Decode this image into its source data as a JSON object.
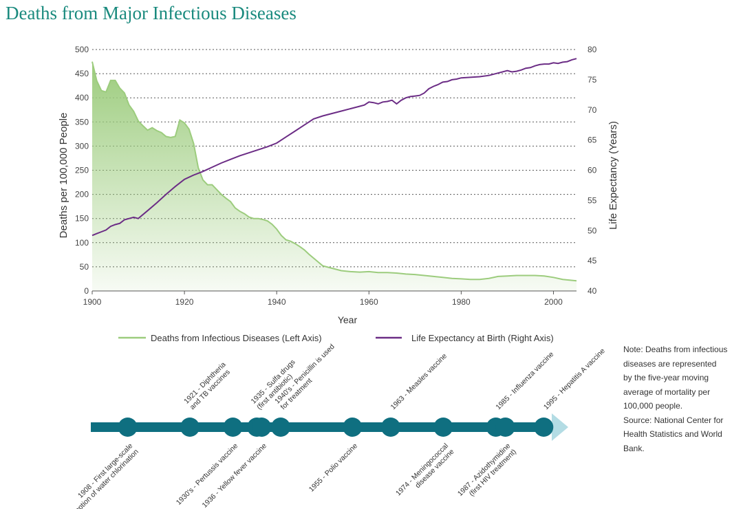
{
  "title": "Deaths from Major Infectious Diseases",
  "colors": {
    "title": "#1a8a7e",
    "deaths_line": "#9ccc7d",
    "deaths_fill": "#a8d08d",
    "life_line": "#6b2c85",
    "timeline": "#0f6f80",
    "timeline_arrow": "#b3dce4"
  },
  "chart_data": {
    "type": "area",
    "xlabel": "Year",
    "ylabel": "Deaths per 100,000 People",
    "y2label": "Life Expectancy (Years)",
    "xlim": [
      1900,
      2005
    ],
    "ylim": [
      0,
      500
    ],
    "y2lim": [
      40,
      80
    ],
    "x_ticks": [
      "1900",
      "1920",
      "1940",
      "1960",
      "1980",
      "2000"
    ],
    "y_ticks": [
      "0",
      "50",
      "100",
      "150",
      "200",
      "250",
      "300",
      "350",
      "400",
      "450",
      "500"
    ],
    "y2_ticks": [
      "40",
      "45",
      "50",
      "55",
      "60",
      "65",
      "70",
      "75",
      "80"
    ],
    "grid": true,
    "legend_position": "bottom",
    "series": [
      {
        "name": "Deaths from Infectious Diseases (Left Axis)",
        "axis": "left",
        "type": "area",
        "x": [
          1900,
          1901,
          1902,
          1903,
          1904,
          1905,
          1906,
          1907,
          1908,
          1909,
          1910,
          1911,
          1912,
          1913,
          1914,
          1915,
          1916,
          1917,
          1918,
          1919,
          1920,
          1921,
          1922,
          1923,
          1924,
          1925,
          1926,
          1927,
          1928,
          1929,
          1930,
          1931,
          1932,
          1933,
          1934,
          1935,
          1936,
          1937,
          1938,
          1939,
          1940,
          1941,
          1942,
          1943,
          1944,
          1945,
          1946,
          1947,
          1948,
          1949,
          1950,
          1952,
          1954,
          1956,
          1958,
          1960,
          1962,
          1964,
          1966,
          1968,
          1970,
          1972,
          1974,
          1976,
          1978,
          1980,
          1982,
          1984,
          1986,
          1988,
          1990,
          1992,
          1994,
          1996,
          1998,
          2000,
          2002,
          2005
        ],
        "values": [
          475,
          435,
          415,
          412,
          436,
          436,
          420,
          410,
          385,
          372,
          352,
          342,
          333,
          338,
          332,
          328,
          320,
          318,
          320,
          354,
          348,
          335,
          305,
          255,
          230,
          220,
          220,
          210,
          200,
          192,
          185,
          172,
          165,
          160,
          153,
          150,
          150,
          148,
          145,
          138,
          128,
          115,
          106,
          103,
          98,
          92,
          85,
          76,
          68,
          60,
          52,
          47,
          42,
          40,
          39,
          40,
          38,
          38,
          37,
          35,
          34,
          32,
          30,
          28,
          26,
          25,
          24,
          24,
          26,
          30,
          31,
          32,
          32,
          32,
          31,
          28,
          24,
          21
        ],
        "color": "#9ccc7d"
      },
      {
        "name": "Life Expectancy at Birth (Right Axis)",
        "axis": "right",
        "type": "line",
        "x": [
          1900,
          1901,
          1902,
          1903,
          1904,
          1905,
          1906,
          1907,
          1908,
          1909,
          1910,
          1912,
          1914,
          1916,
          1918,
          1920,
          1922,
          1924,
          1926,
          1928,
          1930,
          1932,
          1934,
          1936,
          1938,
          1940,
          1942,
          1944,
          1946,
          1948,
          1950,
          1952,
          1954,
          1956,
          1958,
          1959,
          1960,
          1961,
          1962,
          1963,
          1964,
          1965,
          1966,
          1967,
          1968,
          1969,
          1970,
          1971,
          1972,
          1973,
          1974,
          1975,
          1976,
          1977,
          1978,
          1979,
          1980,
          1982,
          1984,
          1986,
          1988,
          1990,
          1991,
          1992,
          1993,
          1994,
          1995,
          1996,
          1997,
          1998,
          1999,
          2000,
          2001,
          2002,
          2003,
          2004,
          2005
        ],
        "values": [
          49.2,
          49.5,
          49.8,
          50.1,
          50.7,
          51.0,
          51.2,
          51.8,
          52.0,
          52.2,
          52.0,
          53.3,
          54.6,
          56.0,
          57.3,
          58.5,
          59.2,
          59.8,
          60.5,
          61.2,
          61.8,
          62.4,
          62.9,
          63.4,
          63.9,
          64.5,
          65.5,
          66.5,
          67.5,
          68.5,
          69.0,
          69.4,
          69.8,
          70.2,
          70.6,
          70.8,
          71.3,
          71.2,
          71.0,
          71.3,
          71.4,
          71.6,
          71.0,
          71.6,
          72.0,
          72.2,
          72.3,
          72.4,
          72.8,
          73.5,
          73.9,
          74.2,
          74.6,
          74.7,
          75.0,
          75.1,
          75.3,
          75.4,
          75.5,
          75.7,
          76.1,
          76.5,
          76.3,
          76.4,
          76.6,
          76.9,
          77.0,
          77.3,
          77.5,
          77.6,
          77.6,
          77.8,
          77.7,
          77.9,
          78.0,
          78.3,
          78.5
        ],
        "color": "#6b2c85"
      }
    ]
  },
  "timeline": {
    "dots": [
      1908,
      1921,
      1930,
      1935,
      1936,
      1940,
      1955,
      1963,
      1974,
      1985,
      1987,
      1995
    ],
    "events": [
      {
        "year": 1908,
        "position": "below",
        "lines": [
          "1908 - First large-scale",
          "adoption of water chlorination"
        ]
      },
      {
        "year": 1921,
        "position": "above",
        "lines": [
          "1921 - Diphtheria",
          "and TB vaccines"
        ]
      },
      {
        "year": 1930,
        "position": "below",
        "lines": [
          "1930's - Pertussis vaccine"
        ]
      },
      {
        "year": 1935,
        "position": "above",
        "lines": [
          "1935 - Sulfa drugs",
          "(first antibiotic)"
        ]
      },
      {
        "year": 1936,
        "position": "below",
        "lines": [
          "1936 - Yellow fever vaccine"
        ]
      },
      {
        "year": 1940,
        "position": "above",
        "lines": [
          "1940's - Penicillin is used",
          "for treatment"
        ]
      },
      {
        "year": 1955,
        "position": "below",
        "lines": [
          "1955 - Polio vaccine"
        ]
      },
      {
        "year": 1963,
        "position": "above",
        "lines": [
          "1963 - Measles vaccine"
        ]
      },
      {
        "year": 1974,
        "position": "below",
        "lines": [
          "1974 - Meningococcal",
          "disease vaccine"
        ]
      },
      {
        "year": 1985,
        "position": "above",
        "lines": [
          "1985 - Influenza vaccine"
        ]
      },
      {
        "year": 1987,
        "position": "below",
        "lines": [
          "1987 - Azidothymidine",
          "(first HIV treatment)"
        ]
      },
      {
        "year": 1995,
        "position": "above",
        "lines": [
          "1995 - Hepatitis A vaccine"
        ]
      }
    ]
  },
  "note": {
    "lines": [
      "Note: Deaths from infectious",
      "diseases are represented",
      "by the five-year moving",
      "average of mortality per",
      "100,000 people.",
      "Source: National Center for",
      "Health Statistics and World",
      "Bank."
    ]
  }
}
